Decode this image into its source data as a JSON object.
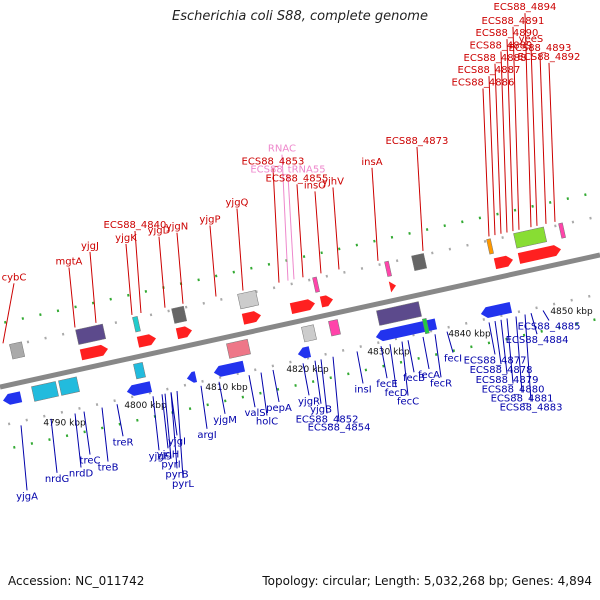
{
  "title": "Escherichia coli S88, complete genome",
  "footer": {
    "accession": "Accession: NC_011742",
    "summary": "Topology: circular; Length: 5,032,268 bp; Genes: 4,894"
  },
  "colors": {
    "top_label": "#cc0000",
    "bottom_label": "#0000aa",
    "rna_label": "#ee88cc",
    "backbone": "#888888"
  },
  "scale_marks": [
    {
      "text": "4790 kbp",
      "pos": 0.085
    },
    {
      "text": "4800 kbp",
      "pos": 0.22
    },
    {
      "text": "4810 kbp",
      "pos": 0.355
    },
    {
      "text": "4820 kbp",
      "pos": 0.49
    },
    {
      "text": "4830 kbp",
      "pos": 0.625
    },
    {
      "text": "4840 kbp",
      "pos": 0.76
    },
    {
      "text": "4850 kbp",
      "pos": 0.93
    }
  ],
  "top_labels": [
    {
      "text": "cybC",
      "pos": 0.02,
      "lane": 3
    },
    {
      "text": "mgtA",
      "pos": 0.14,
      "lane": 3
    },
    {
      "text": "yjgJ",
      "pos": 0.175,
      "lane": 4
    },
    {
      "text": "yjgK",
      "pos": 0.235,
      "lane": 4
    },
    {
      "text": "ECS88_4840",
      "pos": 0.25,
      "lane": 5
    },
    {
      "text": "yjgD",
      "pos": 0.29,
      "lane": 4
    },
    {
      "text": "yjgN",
      "pos": 0.32,
      "lane": 4
    },
    {
      "text": "yjgP",
      "pos": 0.375,
      "lane": 4
    },
    {
      "text": "yjgQ",
      "pos": 0.42,
      "lane": 5
    },
    {
      "text": "RNAC",
      "pos": 0.495,
      "lane": 9,
      "kind": "rna"
    },
    {
      "text": "ECS88_4853",
      "pos": 0.48,
      "lane": 8
    },
    {
      "text": "ECS88_tRNA55",
      "pos": 0.505,
      "lane": 7,
      "kind": "rna"
    },
    {
      "text": "ECS88_4855",
      "pos": 0.52,
      "lane": 6
    },
    {
      "text": "insO",
      "pos": 0.55,
      "lane": 5
    },
    {
      "text": "yjhV",
      "pos": 0.58,
      "lane": 5
    },
    {
      "text": "insA",
      "pos": 0.645,
      "lane": 6
    },
    {
      "text": "ECS88_4873",
      "pos": 0.72,
      "lane": 7
    },
    {
      "text": "ECS88_4886",
      "pos": 0.83,
      "lane": 11
    },
    {
      "text": "ECS88_4887",
      "pos": 0.84,
      "lane": 12
    },
    {
      "text": "ECS88_4888",
      "pos": 0.85,
      "lane": 13
    },
    {
      "text": "ECS88_4889",
      "pos": 0.86,
      "lane": 14
    },
    {
      "text": "ECS88_4890",
      "pos": 0.87,
      "lane": 15
    },
    {
      "text": "ECS88_4891",
      "pos": 0.88,
      "lane": 16
    },
    {
      "text": "ECS88_4894",
      "pos": 0.9,
      "lane": 17
    },
    {
      "text": "yeeS",
      "pos": 0.91,
      "lane": 14
    },
    {
      "text": "ECS88_4893",
      "pos": 0.925,
      "lane": 13
    },
    {
      "text": "ECS88_4892",
      "pos": 0.94,
      "lane": 12
    }
  ],
  "bottom_labels": [
    {
      "text": "yjgA",
      "pos": 0.02,
      "lane": 4
    },
    {
      "text": "nrdG",
      "pos": 0.07,
      "lane": 3
    },
    {
      "text": "nrdD",
      "pos": 0.11,
      "lane": 3
    },
    {
      "text": "treC",
      "pos": 0.125,
      "lane": 2
    },
    {
      "text": "treB",
      "pos": 0.155,
      "lane": 3
    },
    {
      "text": "treR",
      "pos": 0.18,
      "lane": 1
    },
    {
      "text": "yjgF",
      "pos": 0.24,
      "lane": 3
    },
    {
      "text": "yjgH",
      "pos": 0.255,
      "lane": 3
    },
    {
      "text": "pyrI",
      "pos": 0.26,
      "lane": 4
    },
    {
      "text": "pyrB",
      "pos": 0.27,
      "lane": 5
    },
    {
      "text": "pyrL",
      "pos": 0.28,
      "lane": 6
    },
    {
      "text": "yjgI",
      "pos": 0.27,
      "lane": 2
    },
    {
      "text": "argI",
      "pos": 0.32,
      "lane": 2
    },
    {
      "text": "yjgM",
      "pos": 0.35,
      "lane": 1
    },
    {
      "text": "valS",
      "pos": 0.4,
      "lane": 1
    },
    {
      "text": "holC",
      "pos": 0.42,
      "lane": 2
    },
    {
      "text": "pepA",
      "pos": 0.44,
      "lane": 1
    },
    {
      "text": "yjgR",
      "pos": 0.49,
      "lane": 1
    },
    {
      "text": "yjgB",
      "pos": 0.51,
      "lane": 2
    },
    {
      "text": "ECS88_4852",
      "pos": 0.52,
      "lane": 3
    },
    {
      "text": "ECS88_4854",
      "pos": 0.54,
      "lane": 4
    },
    {
      "text": "insI",
      "pos": 0.58,
      "lane": 1
    },
    {
      "text": "fecE",
      "pos": 0.62,
      "lane": 1
    },
    {
      "text": "fecD",
      "pos": 0.635,
      "lane": 2
    },
    {
      "text": "fecC",
      "pos": 0.655,
      "lane": 3
    },
    {
      "text": "fecB",
      "pos": 0.665,
      "lane": 1
    },
    {
      "text": "fecA",
      "pos": 0.69,
      "lane": 1
    },
    {
      "text": "fecR",
      "pos": 0.71,
      "lane": 2
    },
    {
      "text": "fecI",
      "pos": 0.73,
      "lane": 0
    },
    {
      "text": "ECS88_4877",
      "pos": 0.8,
      "lane": 1
    },
    {
      "text": "ECS88_4878",
      "pos": 0.81,
      "lane": 2
    },
    {
      "text": "ECS88_4879",
      "pos": 0.82,
      "lane": 3
    },
    {
      "text": "ECS88_4880",
      "pos": 0.83,
      "lane": 4
    },
    {
      "text": "ECS88_4881",
      "pos": 0.845,
      "lane": 5
    },
    {
      "text": "ECS88_4883",
      "pos": 0.86,
      "lane": 6
    },
    {
      "text": "ECS88_4884",
      "pos": 0.87,
      "lane": 0
    },
    {
      "text": "ECS88_4885",
      "pos": 0.89,
      "lane": -1
    }
  ],
  "features_top": [
    {
      "pos": 0.03,
      "len": 0.02,
      "color": "#aaaaaa",
      "row": 1,
      "shape": "box"
    },
    {
      "pos": 0.14,
      "len": 0.045,
      "color": "#5c4a8c",
      "row": 1,
      "shape": "box"
    },
    {
      "pos": 0.14,
      "len": 0.045,
      "color": "#ff2020",
      "row": 0,
      "shape": "arrow"
    },
    {
      "pos": 0.235,
      "len": 0.008,
      "color": "#22cccc",
      "row": 1,
      "shape": "box"
    },
    {
      "pos": 0.235,
      "len": 0.03,
      "color": "#ff2020",
      "row": 0,
      "shape": "arrow"
    },
    {
      "pos": 0.3,
      "len": 0.02,
      "color": "#666666",
      "row": 1,
      "shape": "box"
    },
    {
      "pos": 0.3,
      "len": 0.025,
      "color": "#ff2020",
      "row": 0,
      "shape": "arrow"
    },
    {
      "pos": 0.41,
      "len": 0.03,
      "color": "#cccccc",
      "row": 1,
      "shape": "box"
    },
    {
      "pos": 0.41,
      "len": 0.03,
      "color": "#ff2020",
      "row": 0,
      "shape": "arrow"
    },
    {
      "pos": 0.49,
      "len": 0.04,
      "color": "#ff2020",
      "row": 0,
      "shape": "arrow"
    },
    {
      "pos": 0.535,
      "len": 0.006,
      "color": "#ff44aa",
      "row": 1,
      "shape": "box"
    },
    {
      "pos": 0.54,
      "len": 0.02,
      "color": "#ff2020",
      "row": 0,
      "shape": "arrow"
    },
    {
      "pos": 0.655,
      "len": 0.006,
      "color": "#ff44aa",
      "row": 1,
      "shape": "box"
    },
    {
      "pos": 0.655,
      "len": 0.01,
      "color": "#ff2020",
      "row": 0,
      "shape": "arrow"
    },
    {
      "pos": 0.7,
      "len": 0.02,
      "color": "#666666",
      "row": 1,
      "shape": "box"
    },
    {
      "pos": 0.825,
      "len": 0.006,
      "color": "#ff9900",
      "row": 1,
      "shape": "box"
    },
    {
      "pos": 0.83,
      "len": 0.03,
      "color": "#ff2020",
      "row": 0,
      "shape": "arrow"
    },
    {
      "pos": 0.87,
      "len": 0.05,
      "color": "#88dd33",
      "row": 1,
      "shape": "box"
    },
    {
      "pos": 0.87,
      "len": 0.07,
      "color": "#ff2020",
      "row": 0,
      "shape": "arrow"
    },
    {
      "pos": 0.945,
      "len": 0.006,
      "color": "#ff44aa",
      "row": 1,
      "shape": "box"
    }
  ],
  "features_bottom": [
    {
      "pos": 0.0,
      "len": 0.03,
      "color": "#2233ee",
      "row": 0,
      "shape": "arrow"
    },
    {
      "pos": 0.05,
      "len": 0.04,
      "color": "#22bbdd",
      "row": 0,
      "shape": "box"
    },
    {
      "pos": 0.095,
      "len": 0.03,
      "color": "#22bbdd",
      "row": 0,
      "shape": "box"
    },
    {
      "pos": 0.2,
      "len": 0.04,
      "color": "#2233ee",
      "row": 1,
      "shape": "arrow"
    },
    {
      "pos": 0.22,
      "len": 0.015,
      "color": "#22bbdd",
      "row": 0,
      "shape": "box"
    },
    {
      "pos": 0.3,
      "len": 0.015,
      "color": "#2233ee",
      "row": 1,
      "shape": "arrow"
    },
    {
      "pos": 0.345,
      "len": 0.05,
      "color": "#2233ee",
      "row": 1,
      "shape": "arrow"
    },
    {
      "pos": 0.375,
      "len": 0.035,
      "color": "#ee7788",
      "row": 0,
      "shape": "box"
    },
    {
      "pos": 0.485,
      "len": 0.02,
      "color": "#2233ee",
      "row": 1,
      "shape": "arrow"
    },
    {
      "pos": 0.5,
      "len": 0.02,
      "color": "#cccccc",
      "row": 0,
      "shape": "box"
    },
    {
      "pos": 0.545,
      "len": 0.015,
      "color": "#ff44aa",
      "row": 0,
      "shape": "box"
    },
    {
      "pos": 0.615,
      "len": 0.1,
      "color": "#2233ee",
      "row": 1,
      "shape": "arrow"
    },
    {
      "pos": 0.625,
      "len": 0.07,
      "color": "#5c4a8c",
      "row": 0,
      "shape": "box"
    },
    {
      "pos": 0.695,
      "len": 0.006,
      "color": "#22cc44",
      "row": 1,
      "shape": "box"
    },
    {
      "pos": 0.79,
      "len": 0.05,
      "color": "#2233ee",
      "row": 1,
      "shape": "arrow"
    }
  ]
}
